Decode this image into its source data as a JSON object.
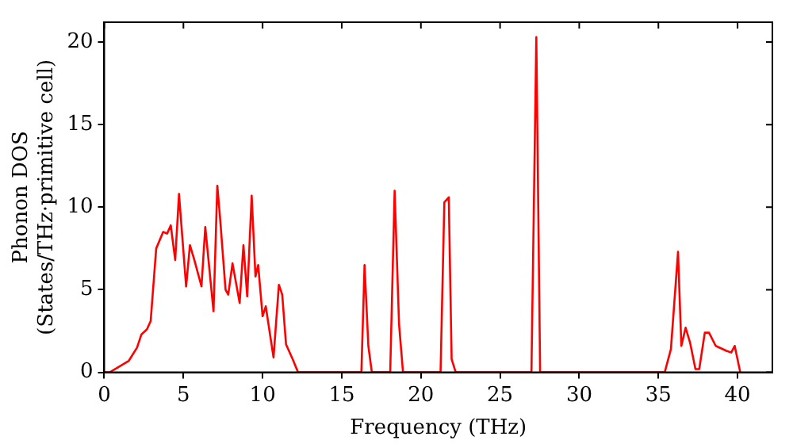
{
  "chart_data": {
    "type": "line",
    "xlabel": "Frequency (THz)",
    "ylabel": "Phonon DOS\n(States/THz·primitive cell)",
    "xlim": [
      0,
      42.2
    ],
    "ylim": [
      0,
      21.2
    ],
    "xticks": [
      0,
      5,
      10,
      15,
      20,
      25,
      30,
      35,
      40
    ],
    "yticks": [
      0,
      5,
      10,
      15,
      20
    ],
    "grid": false,
    "legend": false,
    "marker": "none",
    "line_style": "solid",
    "series": [
      {
        "color": "#ff0000",
        "x": [
          0,
          0.34,
          1.55,
          2.07,
          2.35,
          2.69,
          2.93,
          3.28,
          3.72,
          3.97,
          4.2,
          4.48,
          4.72,
          5.17,
          5.41,
          5.69,
          6.14,
          6.38,
          6.9,
          7.14,
          7.31,
          7.66,
          7.83,
          8.1,
          8.55,
          8.79,
          9.03,
          9.31,
          9.55,
          9.72,
          10.0,
          10.2,
          10.69,
          11.03,
          11.24,
          11.48,
          11.9,
          12.24,
          16.24,
          16.44,
          16.68,
          16.9,
          18.06,
          18.34,
          18.62,
          18.87,
          21.24,
          21.48,
          21.76,
          21.94,
          22.2,
          26.98,
          27.29,
          27.53,
          35.4,
          35.79,
          36.24,
          36.45,
          36.72,
          37.0,
          37.34,
          37.58,
          37.93,
          38.2,
          38.62,
          39.3,
          39.6,
          39.82,
          40.17
        ],
        "values": [
          0,
          0,
          0.7,
          1.5,
          2.3,
          2.6,
          3.1,
          7.5,
          8.5,
          8.4,
          8.9,
          6.8,
          10.8,
          5.2,
          7.7,
          6.8,
          5.2,
          8.8,
          3.7,
          11.3,
          9.4,
          5,
          4.7,
          6.6,
          4.2,
          7.7,
          4.6,
          10.7,
          5.8,
          6.5,
          3.4,
          4,
          0.9,
          5.3,
          4.7,
          1.7,
          0.8,
          0,
          0,
          6.5,
          1.6,
          0,
          0,
          11,
          2.9,
          0,
          0,
          10.3,
          10.6,
          0.8,
          0,
          0,
          20.3,
          0,
          0,
          1.4,
          7.3,
          1.6,
          2.7,
          1.8,
          0.2,
          0.2,
          2.4,
          2.4,
          1.6,
          1.3,
          1.2,
          1.6,
          0
        ]
      }
    ]
  }
}
